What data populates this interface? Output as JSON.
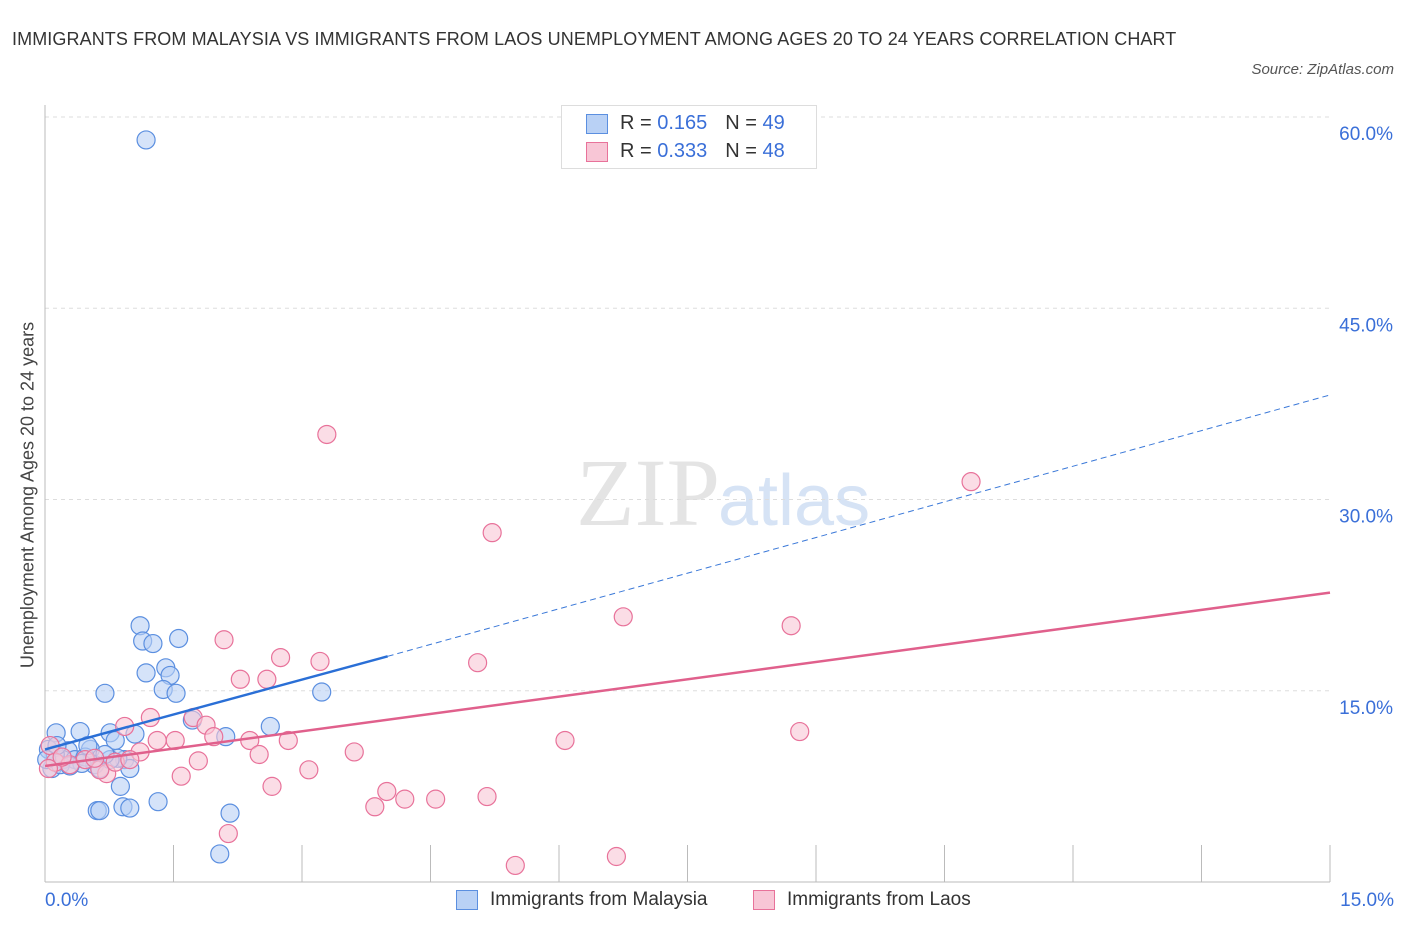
{
  "title": "IMMIGRANTS FROM MALAYSIA VS IMMIGRANTS FROM LAOS UNEMPLOYMENT AMONG AGES 20 TO 24 YEARS CORRELATION CHART",
  "source": "Source: ZipAtlas.com",
  "watermark": "ZIPatlas",
  "chart_data": {
    "type": "scatter",
    "ylabel": "Unemployment Among Ages 20 to 24 years",
    "xlim": [
      0,
      15
    ],
    "ylim": [
      0,
      60
    ],
    "x_tick_labels": [
      "0.0%",
      "15.0%"
    ],
    "y_ticks": [
      15,
      30,
      45,
      60
    ],
    "y_tick_labels": [
      "15.0%",
      "30.0%",
      "45.0%",
      "60.0%"
    ],
    "grid": true,
    "legend_position": "top-center",
    "series": [
      {
        "name": "Immigrants from Malaysia",
        "color": "#5b8fe0",
        "fill": "#b9d1f5",
        "R": "0.165",
        "N": "49",
        "trend": {
          "x0": 0,
          "y0": 10.4,
          "x1": 4.0,
          "y1": 17.7,
          "dash_x1": 15,
          "dash_y1": 38.2
        },
        "points": [
          [
            1.18,
            58.2
          ],
          [
            1.11,
            20.1
          ],
          [
            1.14,
            18.9
          ],
          [
            1.26,
            18.7
          ],
          [
            1.56,
            19.1
          ],
          [
            1.18,
            16.4
          ],
          [
            1.41,
            16.8
          ],
          [
            1.46,
            16.2
          ],
          [
            1.38,
            15.1
          ],
          [
            1.53,
            14.8
          ],
          [
            0.7,
            14.8
          ],
          [
            3.23,
            14.9
          ],
          [
            0.13,
            11.7
          ],
          [
            0.41,
            11.8
          ],
          [
            0.76,
            11.7
          ],
          [
            1.05,
            11.6
          ],
          [
            1.72,
            12.7
          ],
          [
            2.63,
            12.2
          ],
          [
            2.11,
            11.4
          ],
          [
            0.04,
            10.4
          ],
          [
            0.27,
            10.3
          ],
          [
            0.53,
            10.4
          ],
          [
            0.82,
            11.1
          ],
          [
            0.21,
            9.6
          ],
          [
            0.35,
            9.6
          ],
          [
            0.58,
            9.2
          ],
          [
            0.64,
            8.9
          ],
          [
            0.93,
            9.6
          ],
          [
            0.99,
            8.9
          ],
          [
            0.85,
            9.7
          ],
          [
            0.08,
            8.9
          ],
          [
            0.18,
            9.2
          ],
          [
            0.88,
            7.5
          ],
          [
            0.61,
            5.6
          ],
          [
            0.64,
            5.6
          ],
          [
            0.91,
            5.9
          ],
          [
            0.99,
            5.8
          ],
          [
            1.32,
            6.3
          ],
          [
            2.16,
            5.4
          ],
          [
            2.04,
            2.2
          ],
          [
            0.47,
            9.8
          ],
          [
            0.12,
            10.0
          ],
          [
            0.76,
            9.6
          ],
          [
            0.43,
            9.3
          ],
          [
            0.14,
            10.7
          ],
          [
            0.29,
            9.1
          ],
          [
            0.7,
            10.0
          ],
          [
            0.02,
            9.6
          ],
          [
            0.5,
            10.7
          ]
        ]
      },
      {
        "name": "Immigrants from Laos",
        "color": "#e8729a",
        "fill": "#f8c6d6",
        "R": "0.333",
        "N": "48",
        "trend": {
          "x0": 0,
          "y0": 9.1,
          "x1": 15,
          "y1": 22.7
        },
        "points": [
          [
            3.29,
            35.1
          ],
          [
            5.22,
            27.4
          ],
          [
            10.81,
            31.4
          ],
          [
            6.75,
            20.8
          ],
          [
            8.71,
            20.1
          ],
          [
            2.09,
            19.0
          ],
          [
            3.21,
            17.3
          ],
          [
            2.75,
            17.6
          ],
          [
            5.05,
            17.2
          ],
          [
            2.28,
            15.9
          ],
          [
            2.59,
            15.9
          ],
          [
            1.23,
            12.9
          ],
          [
            0.93,
            12.2
          ],
          [
            1.73,
            12.9
          ],
          [
            1.88,
            12.3
          ],
          [
            1.52,
            11.1
          ],
          [
            1.31,
            11.1
          ],
          [
            1.97,
            11.4
          ],
          [
            2.39,
            11.1
          ],
          [
            2.84,
            11.1
          ],
          [
            8.81,
            11.8
          ],
          [
            6.07,
            11.1
          ],
          [
            3.61,
            10.2
          ],
          [
            2.5,
            10.0
          ],
          [
            1.79,
            9.5
          ],
          [
            1.11,
            10.2
          ],
          [
            3.08,
            8.8
          ],
          [
            1.59,
            8.3
          ],
          [
            2.65,
            7.5
          ],
          [
            3.99,
            7.1
          ],
          [
            3.85,
            5.9
          ],
          [
            4.2,
            6.5
          ],
          [
            4.56,
            6.5
          ],
          [
            5.16,
            6.7
          ],
          [
            2.14,
            3.8
          ],
          [
            5.49,
            1.3
          ],
          [
            6.67,
            2.0
          ],
          [
            0.72,
            8.5
          ],
          [
            0.64,
            8.8
          ],
          [
            0.06,
            10.7
          ],
          [
            0.12,
            9.4
          ],
          [
            0.29,
            9.2
          ],
          [
            0.47,
            9.6
          ],
          [
            0.2,
            9.8
          ],
          [
            0.58,
            9.7
          ],
          [
            0.04,
            8.9
          ],
          [
            0.82,
            9.4
          ],
          [
            0.99,
            9.6
          ]
        ]
      }
    ]
  },
  "legend": {
    "r_label": "R =",
    "n_label": "N ="
  }
}
